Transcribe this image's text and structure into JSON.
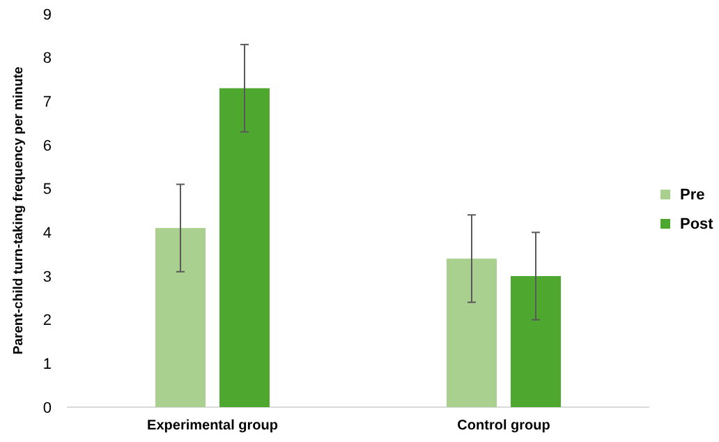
{
  "chart_data": {
    "type": "bar",
    "ylabel": "Parent-child turn-taking frequency per minute",
    "categories": [
      "Experimental group",
      "Control group"
    ],
    "series": [
      {
        "name": "Pre",
        "color": "#a9d08e",
        "values": [
          4.1,
          3.4
        ],
        "errors": [
          1,
          1
        ]
      },
      {
        "name": "Post",
        "color": "#4ea72e",
        "values": [
          7.3,
          3.0
        ],
        "errors": [
          1,
          1
        ]
      }
    ],
    "ylim": [
      0,
      9
    ],
    "yticks": [
      0,
      1,
      2,
      3,
      4,
      5,
      6,
      7,
      8,
      9
    ],
    "grid": false,
    "legend": "right"
  }
}
